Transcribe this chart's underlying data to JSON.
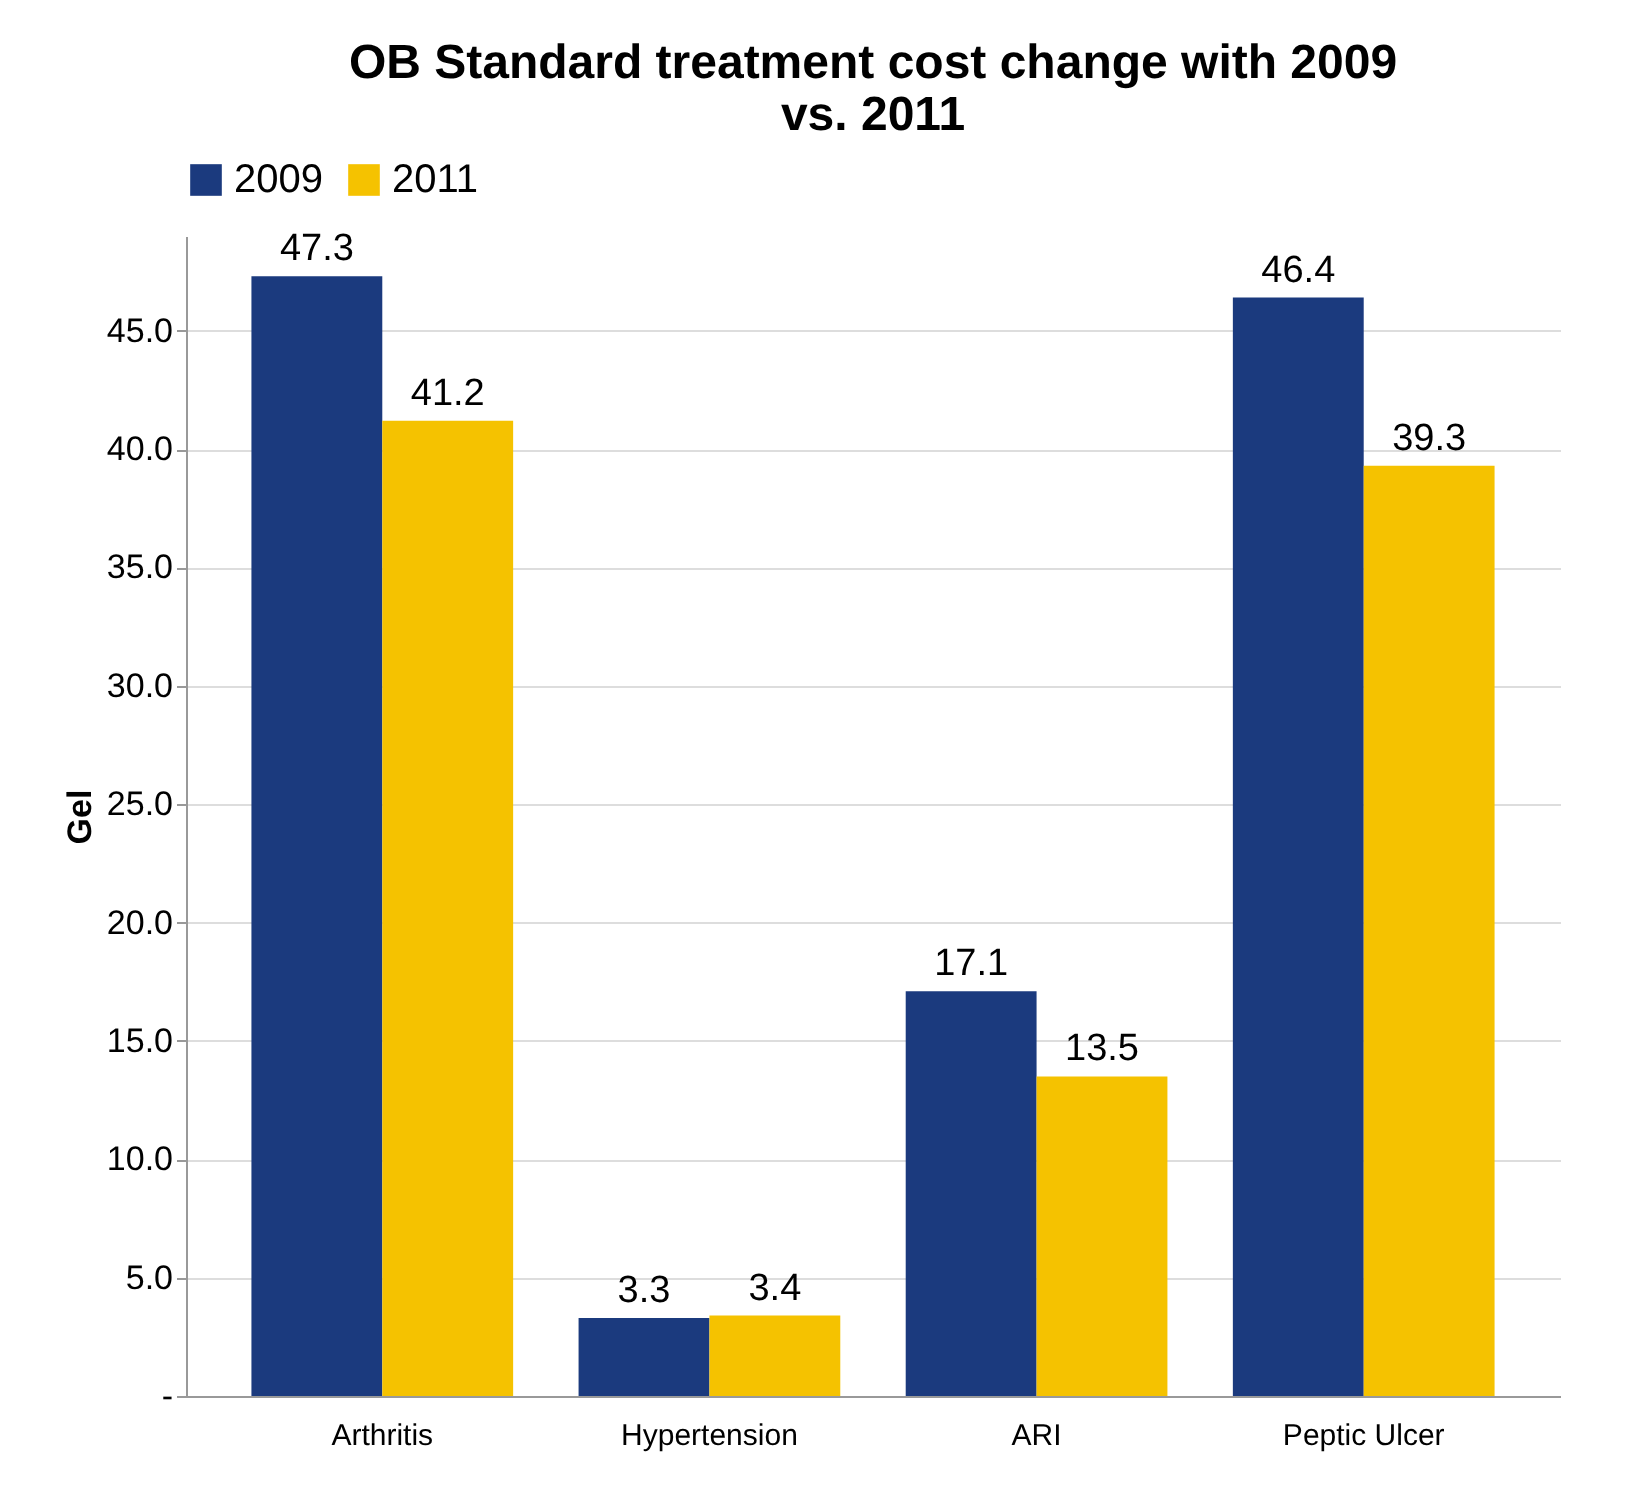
{
  "chart_data": {
    "type": "bar",
    "title": "OB Standard treatment cost change with  2009 vs. 2011",
    "ylabel": "Gel",
    "categories": [
      "Arthritis",
      "Hypertension",
      "ARI",
      "Peptic Ulcer"
    ],
    "series": [
      {
        "name": "2009",
        "color": "#1b3a7e",
        "values": [
          47.3,
          3.3,
          17.1,
          46.4
        ]
      },
      {
        "name": "2011",
        "color": "#f5c200",
        "values": [
          41.2,
          3.4,
          13.5,
          39.3
        ]
      }
    ],
    "ylim": [
      0,
      49
    ],
    "yticks": [
      {
        "value": 0,
        "label": "-"
      },
      {
        "value": 5,
        "label": "5.0"
      },
      {
        "value": 10,
        "label": "10.0"
      },
      {
        "value": 15,
        "label": "15.0"
      },
      {
        "value": 20,
        "label": "20.0"
      },
      {
        "value": 25,
        "label": "25.0"
      },
      {
        "value": 30,
        "label": "30.0"
      },
      {
        "value": 35,
        "label": "35.0"
      },
      {
        "value": 40,
        "label": "40.0"
      },
      {
        "value": 45,
        "label": "45.0"
      }
    ],
    "grid": "y",
    "legend": "top",
    "data_labels": true
  }
}
